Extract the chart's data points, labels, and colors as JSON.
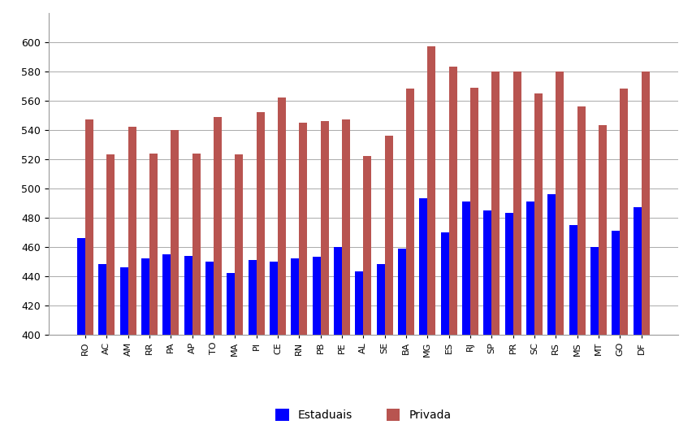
{
  "categories": [
    "RO",
    "AC",
    "AM",
    "RR",
    "PA",
    "AP",
    "TO",
    "MA",
    "PI",
    "CE",
    "RN",
    "PB",
    "PE",
    "AL",
    "SE",
    "BA",
    "MG",
    "ES",
    "RJ",
    "SP",
    "PR",
    "SC",
    "RS",
    "MS",
    "MT",
    "GO",
    "DF"
  ],
  "estaduais": [
    466,
    448,
    446,
    452,
    455,
    454,
    450,
    442,
    451,
    450,
    452,
    453,
    460,
    443,
    448,
    459,
    493,
    470,
    491,
    485,
    483,
    491,
    496,
    475,
    460,
    471,
    487
  ],
  "privada": [
    547,
    523,
    542,
    524,
    540,
    524,
    549,
    523,
    552,
    562,
    545,
    546,
    547,
    522,
    536,
    568,
    597,
    583,
    569,
    580,
    580,
    565,
    580,
    556,
    543,
    568,
    580
  ],
  "ylim_min": 400,
  "ylim_max": 620,
  "yticks": [
    400,
    420,
    440,
    460,
    480,
    500,
    520,
    540,
    560,
    580,
    600
  ],
  "color_estaduais": "#0000FF",
  "color_privada": "#B85450",
  "legend_estaduais": "Estaduais",
  "legend_privada": "Privada",
  "bg_color": "#FFFFFF",
  "grid_color": "#AAAAAA",
  "bar_width": 0.38
}
